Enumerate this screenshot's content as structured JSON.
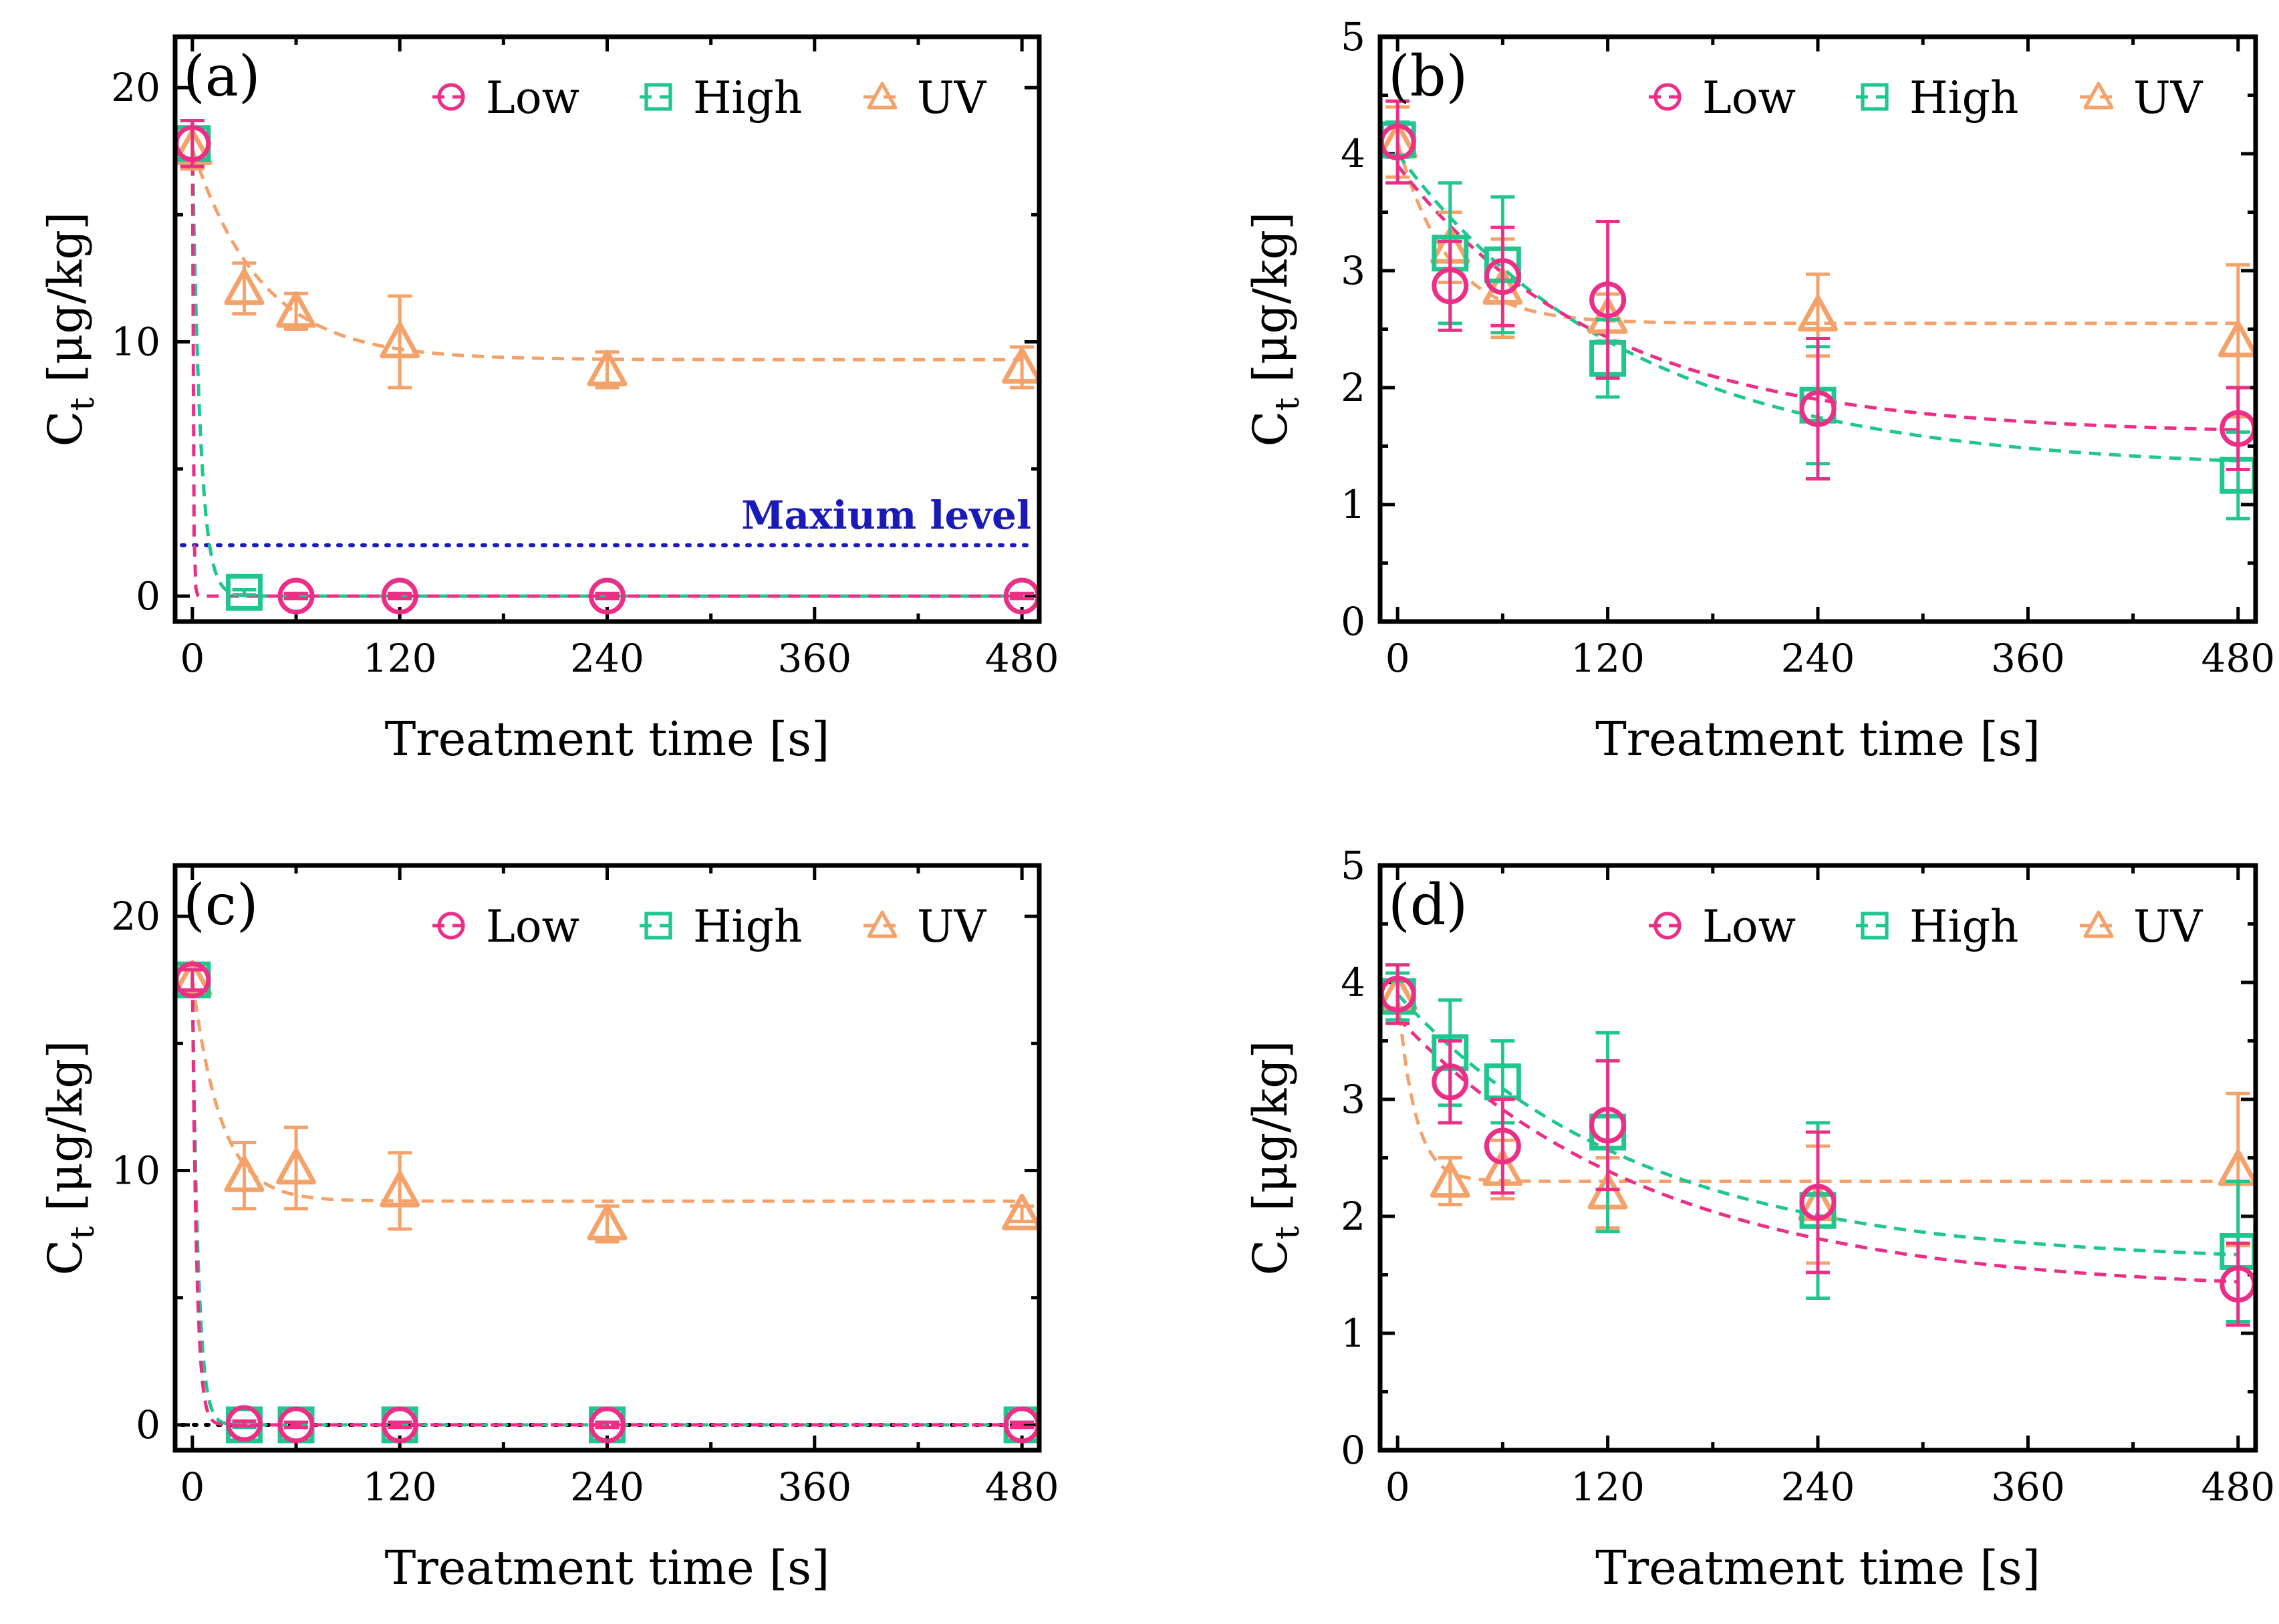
{
  "figure": {
    "background": "#ffffff"
  },
  "series_style": [
    {
      "key": "Low",
      "color": "#ec2f86",
      "marker": "circle"
    },
    {
      "key": "High",
      "color": "#1fc78f",
      "marker": "square"
    },
    {
      "key": "UV",
      "color": "#f4a26a",
      "marker": "triangle"
    }
  ],
  "chart_data": [
    {
      "type": "scatter",
      "panel_label": "(a)",
      "xlabel": "Treatment time [s]",
      "ylabel_main": "C",
      "ylabel_sub": "t",
      "ylabel_unit": " [μg/kg]",
      "xlim": [
        -10,
        490
      ],
      "ylim": [
        -1,
        22
      ],
      "xticks": [
        0,
        120,
        240,
        360,
        480
      ],
      "yticks": [
        0,
        10,
        20
      ],
      "legend": [
        "Low",
        "High",
        "UV"
      ],
      "legend_position": "top-right",
      "series": [
        {
          "name": "Low",
          "x": [
            0,
            60,
            120,
            240,
            480
          ],
          "y": [
            17.8,
            0,
            0,
            0,
            0
          ],
          "err": [
            0.9,
            0.1,
            0.1,
            0.1,
            0.1
          ],
          "fit": {
            "c_inf": 0.0,
            "c0": 17.8,
            "k": 2.0
          }
        },
        {
          "name": "High",
          "x": [
            0,
            30
          ],
          "y": [
            17.8,
            0.15
          ],
          "err": [
            0.9,
            0.1
          ],
          "fit": {
            "c_inf": 0.0,
            "c0": 17.8,
            "k": 0.22
          }
        },
        {
          "name": "UV",
          "x": [
            0,
            30,
            60,
            120,
            240,
            480
          ],
          "y": [
            17.6,
            12.1,
            11.2,
            10.0,
            8.9,
            9.0
          ],
          "err": [
            0.8,
            1.0,
            0.7,
            1.8,
            0.7,
            0.8
          ],
          "fit": {
            "c_inf": 9.3,
            "c0": 17.6,
            "k": 0.025
          }
        }
      ],
      "reference_line": {
        "label": "Maxium level",
        "y": 2,
        "color": "#1a1ab8"
      }
    },
    {
      "type": "scatter",
      "panel_label": "(b)",
      "xlabel": "Treatment time [s]",
      "ylabel_main": "C",
      "ylabel_sub": "t",
      "ylabel_unit": " [μg/kg]",
      "xlim": [
        -10,
        490
      ],
      "ylim": [
        0,
        5
      ],
      "xticks": [
        0,
        120,
        240,
        360,
        480
      ],
      "yticks": [
        0,
        1,
        2,
        3,
        4,
        5
      ],
      "legend": [
        "Low",
        "High",
        "UV"
      ],
      "legend_position": "top-right",
      "series": [
        {
          "name": "Low",
          "x": [
            0,
            30,
            60,
            120,
            240,
            480
          ],
          "y": [
            4.1,
            2.87,
            2.95,
            2.75,
            1.82,
            1.65
          ],
          "err": [
            0.35,
            0.38,
            0.42,
            0.67,
            0.6,
            0.35
          ],
          "fit": {
            "c_inf": 1.6,
            "c0": 3.9,
            "k": 0.0085
          }
        },
        {
          "name": "High",
          "x": [
            0,
            30,
            60,
            120,
            240,
            480
          ],
          "y": [
            4.12,
            3.15,
            3.05,
            2.25,
            1.85,
            1.25
          ],
          "err": [
            0.15,
            0.6,
            0.58,
            0.33,
            0.5,
            0.37
          ],
          "fit": {
            "c_inf": 1.3,
            "c0": 4.0,
            "k": 0.0075
          }
        },
        {
          "name": "UV",
          "x": [
            0,
            30,
            60,
            120,
            240,
            480
          ],
          "y": [
            4.1,
            3.2,
            2.85,
            2.6,
            2.62,
            2.4
          ],
          "err": [
            0.3,
            0.3,
            0.42,
            0.2,
            0.35,
            0.65
          ],
          "fit": {
            "c_inf": 2.55,
            "c0": 4.1,
            "k": 0.035
          }
        }
      ]
    },
    {
      "type": "scatter",
      "panel_label": "(c)",
      "xlabel": "Treatment time [s]",
      "ylabel_main": "C",
      "ylabel_sub": "t",
      "ylabel_unit": " [μg/kg]",
      "xlim": [
        -10,
        490
      ],
      "ylim": [
        -1,
        22
      ],
      "xticks": [
        0,
        120,
        240,
        360,
        480
      ],
      "yticks": [
        0,
        10,
        20
      ],
      "legend": [
        "Low",
        "High",
        "UV"
      ],
      "legend_position": "top-right",
      "series": [
        {
          "name": "Low",
          "x": [
            0,
            30,
            60,
            120,
            240,
            480
          ],
          "y": [
            17.5,
            0.05,
            0,
            0,
            0,
            0
          ],
          "err": [
            0.4,
            0.1,
            0.1,
            0.1,
            0.1,
            0.1
          ],
          "fit": {
            "c_inf": 0.0,
            "c0": 17.5,
            "k": 0.4
          }
        },
        {
          "name": "High",
          "x": [
            0,
            30,
            60,
            120,
            240,
            480
          ],
          "y": [
            17.5,
            0,
            0,
            0,
            0,
            0
          ],
          "err": [
            0.4,
            0.1,
            0.1,
            0.1,
            0.1,
            0.1
          ],
          "fit": {
            "c_inf": 0.0,
            "c0": 17.5,
            "k": 0.3
          }
        },
        {
          "name": "UV",
          "x": [
            0,
            30,
            60,
            120,
            240,
            480
          ],
          "y": [
            17.5,
            9.8,
            10.1,
            9.2,
            7.9,
            8.3
          ],
          "err": [
            0.4,
            1.3,
            1.6,
            1.5,
            0.7,
            0.3
          ],
          "fit": {
            "c_inf": 8.8,
            "c0": 17.5,
            "k": 0.06
          }
        }
      ],
      "reference_line": {
        "label": "",
        "y": 0,
        "color": "#000000"
      }
    },
    {
      "type": "scatter",
      "panel_label": "(d)",
      "xlabel": "Treatment time [s]",
      "ylabel_main": "C",
      "ylabel_sub": "t",
      "ylabel_unit": " [μg/kg]",
      "xlim": [
        -10,
        490
      ],
      "ylim": [
        0,
        5
      ],
      "xticks": [
        0,
        120,
        240,
        360,
        480
      ],
      "yticks": [
        0,
        1,
        2,
        3,
        4,
        5
      ],
      "legend": [
        "Low",
        "High",
        "UV"
      ],
      "legend_position": "top-right",
      "series": [
        {
          "name": "Low",
          "x": [
            0,
            30,
            60,
            120,
            240,
            480
          ],
          "y": [
            3.9,
            3.15,
            2.6,
            2.78,
            2.12,
            1.42
          ],
          "err": [
            0.25,
            0.35,
            0.4,
            0.55,
            0.6,
            0.35
          ],
          "fit": {
            "c_inf": 1.35,
            "c0": 3.7,
            "k": 0.0068
          }
        },
        {
          "name": "High",
          "x": [
            0,
            30,
            60,
            120,
            240,
            480
          ],
          "y": [
            3.88,
            3.4,
            3.15,
            2.72,
            2.05,
            1.7
          ],
          "err": [
            0.2,
            0.45,
            0.35,
            0.85,
            0.75,
            0.6
          ],
          "fit": {
            "c_inf": 1.6,
            "c0": 3.9,
            "k": 0.0072
          }
        },
        {
          "name": "UV",
          "x": [
            0,
            30,
            60,
            120,
            240,
            480
          ],
          "y": [
            3.9,
            2.3,
            2.4,
            2.2,
            2.1,
            2.4
          ],
          "err": [
            0.25,
            0.2,
            0.25,
            0.3,
            0.5,
            0.65
          ],
          "fit": {
            "c_inf": 2.3,
            "c0": 3.9,
            "k": 0.1
          }
        }
      ]
    }
  ]
}
